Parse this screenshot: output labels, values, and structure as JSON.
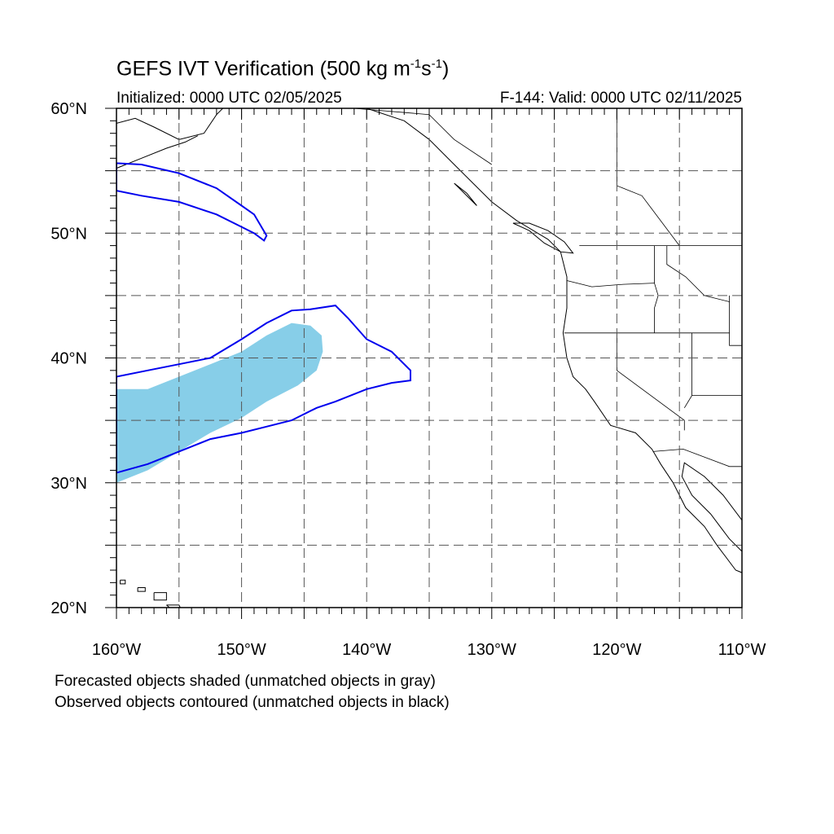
{
  "title": {
    "prefix": "GEFS IVT Verification (500 kg m",
    "exp1": "-1",
    "middle": "s",
    "exp2": "-1",
    "suffix": ")"
  },
  "subtitle_left": "Initialized: 0000 UTC 02/05/2025",
  "subtitle_right": "F-144: Valid: 0000 UTC 02/11/2025",
  "notes": [
    "Forecasted objects shaded (unmatched objects in gray)",
    "Observed objects contoured (unmatched objects in black)"
  ],
  "map": {
    "lon_range": [
      -160,
      -110
    ],
    "lat_range": [
      20,
      60
    ],
    "lon_ticks": [
      {
        "value": -160,
        "label": "160°W"
      },
      {
        "value": -150,
        "label": "150°W"
      },
      {
        "value": -140,
        "label": "140°W"
      },
      {
        "value": -130,
        "label": "130°W"
      },
      {
        "value": -120,
        "label": "120°W"
      },
      {
        "value": -110,
        "label": "110°W"
      }
    ],
    "lat_ticks": [
      {
        "value": 60,
        "label": "60°N"
      },
      {
        "value": 50,
        "label": "50°N"
      },
      {
        "value": 40,
        "label": "40°N"
      },
      {
        "value": 30,
        "label": "30°N"
      },
      {
        "value": 20,
        "label": "20°N"
      }
    ],
    "grid_lons": [
      -155,
      -150,
      -145,
      -140,
      -135,
      -130,
      -125,
      -120,
      -115
    ],
    "grid_lats": [
      25,
      30,
      35,
      40,
      45,
      50,
      55
    ],
    "grid": true,
    "colors": {
      "forecast_fill": "#87CEE8",
      "observed_contour": "#0000EE",
      "coastline": "#000000",
      "grid": "#555555"
    },
    "forecast_objects": [
      {
        "name": "forecast-object-1",
        "points": [
          [
            -160,
            37.5
          ],
          [
            -157.5,
            37.5
          ],
          [
            -155,
            38.5
          ],
          [
            -152.5,
            39.5
          ],
          [
            -150,
            40.5
          ],
          [
            -148,
            41.8
          ],
          [
            -146,
            42.8
          ],
          [
            -144.5,
            42.6
          ],
          [
            -143.6,
            41.8
          ],
          [
            -143.5,
            40.5
          ],
          [
            -144,
            39
          ],
          [
            -145.5,
            37.8
          ],
          [
            -148,
            36.5
          ],
          [
            -150,
            35.2
          ],
          [
            -152.5,
            34
          ],
          [
            -155,
            32.5
          ],
          [
            -157.5,
            31
          ],
          [
            -160,
            30
          ]
        ]
      }
    ],
    "observed_objects": [
      {
        "name": "observed-object-1",
        "points": [
          [
            -160,
            38.5
          ],
          [
            -157.5,
            39
          ],
          [
            -155,
            39.5
          ],
          [
            -152.5,
            40
          ],
          [
            -150,
            41.5
          ],
          [
            -148,
            42.8
          ],
          [
            -146,
            43.8
          ],
          [
            -144.5,
            43.9
          ],
          [
            -142.5,
            44.2
          ],
          [
            -141.5,
            43.2
          ],
          [
            -140,
            41.5
          ],
          [
            -138,
            40.5
          ],
          [
            -136.5,
            39
          ],
          [
            -136.5,
            38.2
          ],
          [
            -138,
            38
          ],
          [
            -140,
            37.5
          ],
          [
            -142.5,
            36.5
          ],
          [
            -144,
            36
          ],
          [
            -146,
            35
          ],
          [
            -148,
            34.5
          ],
          [
            -150,
            34
          ],
          [
            -152.5,
            33.5
          ],
          [
            -155,
            32.5
          ],
          [
            -157.5,
            31.5
          ],
          [
            -160,
            30.8
          ]
        ]
      },
      {
        "name": "observed-object-2",
        "points": [
          [
            -160,
            55.6
          ],
          [
            -158,
            55.5
          ],
          [
            -155,
            54.8
          ],
          [
            -152,
            53.6
          ],
          [
            -150,
            52.2
          ],
          [
            -149,
            51.5
          ],
          [
            -148,
            49.8
          ],
          [
            -148.2,
            49.4
          ],
          [
            -149,
            50
          ],
          [
            -150,
            50.5
          ],
          [
            -152,
            51.5
          ],
          [
            -155,
            52.5
          ],
          [
            -158,
            53
          ],
          [
            -160,
            53.4
          ]
        ]
      }
    ],
    "coastlines": [
      {
        "name": "coastline-north-america",
        "points": [
          [
            -140,
            60
          ],
          [
            -137,
            59
          ],
          [
            -135,
            57.5
          ],
          [
            -133,
            55.5
          ],
          [
            -131.5,
            54
          ],
          [
            -130,
            52.5
          ],
          [
            -128,
            51
          ],
          [
            -125.5,
            49.5
          ],
          [
            -124.5,
            48.5
          ],
          [
            -124,
            46.5
          ],
          [
            -124,
            44
          ],
          [
            -124.3,
            42
          ],
          [
            -124,
            40
          ],
          [
            -123.5,
            38.5
          ],
          [
            -122.5,
            37.5
          ],
          [
            -121.8,
            36.5
          ],
          [
            -120.5,
            34.6
          ],
          [
            -118.5,
            34
          ],
          [
            -117.2,
            32.7
          ],
          [
            -116.5,
            31.5
          ],
          [
            -115.5,
            30
          ],
          [
            -114.5,
            28
          ],
          [
            -113,
            26.5
          ],
          [
            -112,
            25
          ],
          [
            -110.5,
            23
          ],
          [
            -110,
            22.8
          ]
        ]
      },
      {
        "name": "coastline-gulf-of-california",
        "points": [
          [
            -110,
            27
          ],
          [
            -111.5,
            29
          ],
          [
            -113,
            30.5
          ],
          [
            -114.6,
            31.6
          ],
          [
            -114.8,
            30.5
          ],
          [
            -114,
            29
          ],
          [
            -112.5,
            27.5
          ],
          [
            -111,
            25.5
          ],
          [
            -110,
            24.5
          ]
        ]
      },
      {
        "name": "coastline-alaska",
        "points": [
          [
            -160,
            58.8
          ],
          [
            -158.5,
            59.2
          ],
          [
            -157,
            58.5
          ],
          [
            -155,
            57.5
          ],
          [
            -153,
            58
          ],
          [
            -152,
            59.5
          ],
          [
            -151.5,
            60
          ]
        ]
      },
      {
        "name": "coastline-kodiak",
        "points": [
          [
            -160,
            55.2
          ],
          [
            -158,
            56
          ],
          [
            -156,
            56.8
          ],
          [
            -154.5,
            57.3
          ],
          [
            -153.5,
            57.8
          ]
        ]
      },
      {
        "name": "coastline-vancouver-island",
        "points": [
          [
            -128.3,
            50.8
          ],
          [
            -127,
            50.2
          ],
          [
            -125.8,
            49.2
          ],
          [
            -124.5,
            48.5
          ],
          [
            -123.5,
            48.4
          ],
          [
            -124.2,
            49.3
          ],
          [
            -125.5,
            50.2
          ],
          [
            -127,
            50.8
          ],
          [
            -128.3,
            50.8
          ]
        ]
      },
      {
        "name": "coastline-haida-gwaii",
        "points": [
          [
            -133,
            54
          ],
          [
            -132,
            53.2
          ],
          [
            -131.2,
            52.2
          ],
          [
            -131.6,
            52.6
          ],
          [
            -132.6,
            53.6
          ],
          [
            -133,
            54
          ]
        ]
      },
      {
        "name": "coastline-hawaii-kauai",
        "points": [
          [
            -159.7,
            22.2
          ],
          [
            -159.3,
            22.2
          ],
          [
            -159.3,
            21.9
          ],
          [
            -159.7,
            21.9
          ],
          [
            -159.7,
            22.2
          ]
        ]
      },
      {
        "name": "coastline-hawaii-oahu",
        "points": [
          [
            -158.3,
            21.6
          ],
          [
            -157.7,
            21.6
          ],
          [
            -157.7,
            21.3
          ],
          [
            -158.3,
            21.3
          ],
          [
            -158.3,
            21.6
          ]
        ]
      },
      {
        "name": "coastline-hawaii-maui",
        "points": [
          [
            -157,
            21.2
          ],
          [
            -156,
            21.2
          ],
          [
            -156,
            20.6
          ],
          [
            -157,
            20.6
          ],
          [
            -157,
            21.2
          ]
        ]
      },
      {
        "name": "coastline-hawaii-big-island",
        "points": [
          [
            -156,
            20.2
          ],
          [
            -155,
            20.2
          ],
          [
            -154.8,
            19.8
          ],
          [
            -155.5,
            19.8
          ],
          [
            -156,
            20.2
          ]
        ]
      }
    ],
    "borders": [
      {
        "name": "border-canada-us",
        "points": [
          [
            -123,
            49
          ],
          [
            -110,
            49
          ]
        ]
      },
      {
        "name": "border-alaska-canada",
        "points": [
          [
            -141,
            60
          ],
          [
            -135,
            59.5
          ],
          [
            -133,
            57.5
          ],
          [
            -130,
            55.5
          ]
        ]
      },
      {
        "name": "border-bc-alberta",
        "points": [
          [
            -120,
            60
          ],
          [
            -120,
            53.8
          ],
          [
            -118,
            53
          ],
          [
            -115,
            49
          ]
        ]
      },
      {
        "name": "border-wa-or",
        "points": [
          [
            -124,
            46.2
          ],
          [
            -122,
            45.7
          ],
          [
            -119.5,
            45.9
          ],
          [
            -117,
            46
          ]
        ]
      },
      {
        "name": "border-or-ca-nv",
        "points": [
          [
            -124.2,
            42
          ],
          [
            -111,
            42
          ]
        ]
      },
      {
        "name": "border-or-id",
        "points": [
          [
            -117,
            49
          ],
          [
            -117,
            46
          ],
          [
            -116.7,
            45
          ],
          [
            -117,
            44
          ],
          [
            -117,
            42
          ]
        ]
      },
      {
        "name": "border-id-mt",
        "points": [
          [
            -116,
            49
          ],
          [
            -116,
            47.5
          ],
          [
            -114.5,
            46.5
          ],
          [
            -113,
            45
          ],
          [
            -111,
            44.5
          ]
        ]
      },
      {
        "name": "border-ca-nv",
        "points": [
          [
            -120,
            42
          ],
          [
            -120,
            39
          ],
          [
            -114.6,
            35
          ],
          [
            -114.6,
            34.2
          ]
        ]
      },
      {
        "name": "border-nv-ut",
        "points": [
          [
            -114,
            42
          ],
          [
            -114,
            37
          ],
          [
            -114.6,
            36
          ]
        ]
      },
      {
        "name": "border-ut-az",
        "points": [
          [
            -114,
            37
          ],
          [
            -110,
            37
          ]
        ]
      },
      {
        "name": "border-us-mexico",
        "points": [
          [
            -117.1,
            32.5
          ],
          [
            -114.7,
            32.7
          ],
          [
            -111,
            31.3
          ],
          [
            -110,
            31.3
          ]
        ]
      },
      {
        "name": "border-wy",
        "points": [
          [
            -111,
            45
          ],
          [
            -111,
            41
          ],
          [
            -110,
            41
          ]
        ]
      }
    ]
  }
}
